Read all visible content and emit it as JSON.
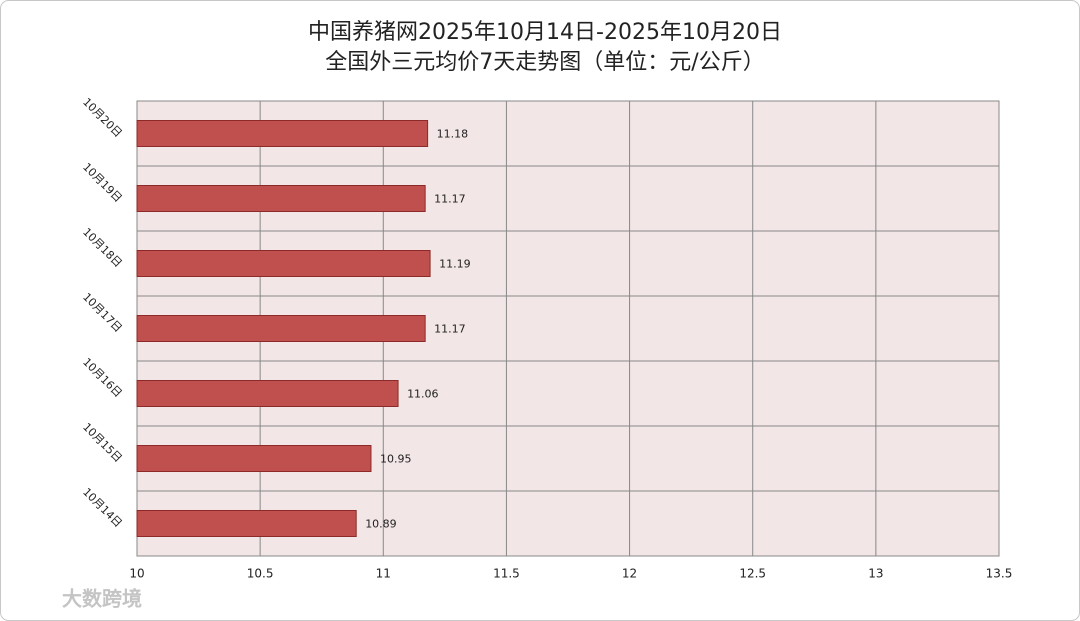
{
  "chart_data": {
    "type": "barh",
    "title": "中国养猪网2025年10月14日-2025年10月20日",
    "subtitle": "全国外三元均价7天走势图（单位：元/公斤）",
    "categories": [
      "10月20日",
      "10月19日",
      "10月18日",
      "10月17日",
      "10月16日",
      "10月15日",
      "10月14日"
    ],
    "values": [
      11.18,
      11.17,
      11.19,
      11.17,
      11.06,
      10.95,
      10.89
    ],
    "color": "#c0504d",
    "xlim": [
      10,
      13.5
    ],
    "xticks": [
      10,
      10.5,
      11,
      11.5,
      12,
      12.5,
      13,
      13.5
    ],
    "grid": true,
    "watermark": "大数跨境"
  }
}
